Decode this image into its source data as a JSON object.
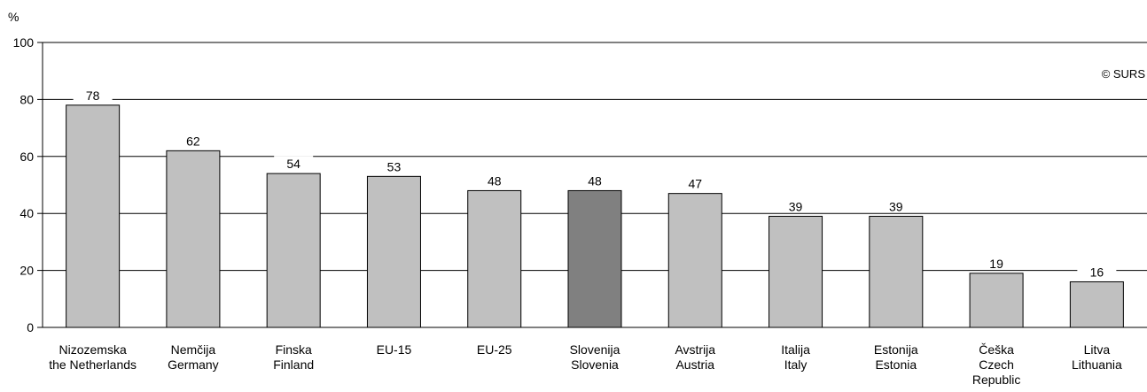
{
  "chart_data": {
    "type": "bar",
    "ylabel": "%",
    "ylim": [
      0,
      100
    ],
    "yticks": [
      0,
      20,
      40,
      60,
      80,
      100
    ],
    "grid": true,
    "categories": [
      [
        "Nizozemska",
        "the Netherlands"
      ],
      [
        "Nemčija",
        "Germany"
      ],
      [
        "Finska",
        "Finland"
      ],
      [
        "EU-15"
      ],
      [
        "EU-25"
      ],
      [
        "Slovenija",
        "Slovenia"
      ],
      [
        "Avstrija",
        "Austria"
      ],
      [
        "Italija",
        "Italy"
      ],
      [
        "Estonija",
        "Estonia"
      ],
      [
        "Češka",
        "Czech",
        "Republic"
      ],
      [
        "Litva",
        "Lithuania"
      ]
    ],
    "values": [
      78,
      62,
      54,
      53,
      48,
      48,
      47,
      39,
      39,
      19,
      16
    ],
    "value_labels": [
      "78",
      "62",
      "54",
      "53",
      "48",
      "48",
      "47",
      "39",
      "39",
      "19",
      "16"
    ],
    "highlight_index": 5,
    "colors": {
      "bar": "#c0c0c0",
      "highlight": "#808080",
      "grid": "#000000"
    },
    "source": "© SURS"
  }
}
